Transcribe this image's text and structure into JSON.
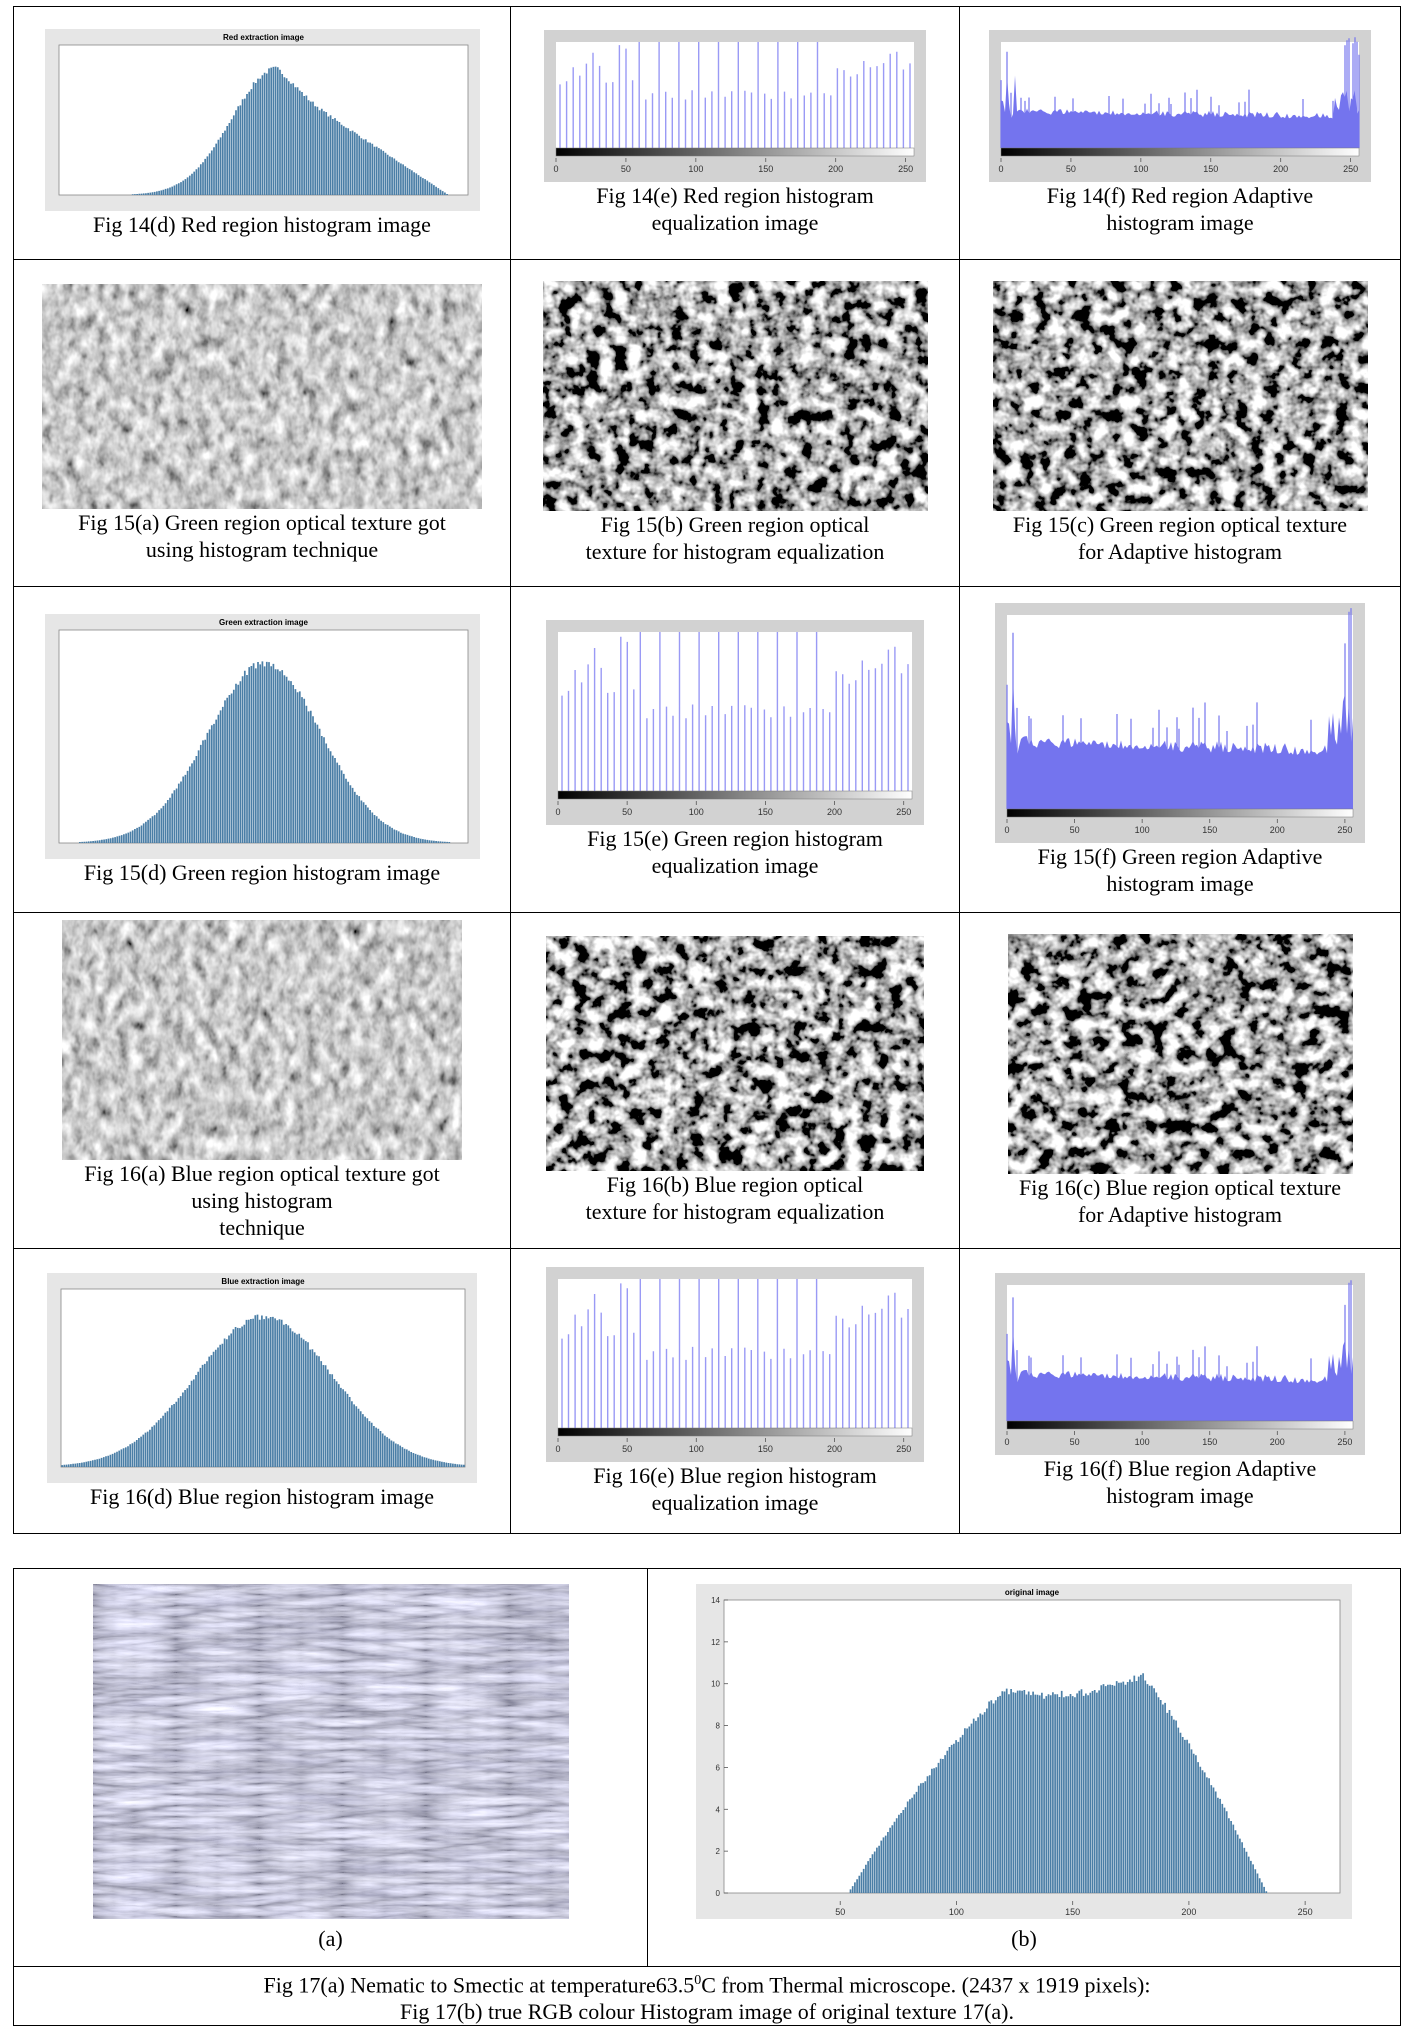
{
  "table": {
    "rows": [
      [
        {
          "figure": {
            "kind": "hist",
            "title": "Red extraction image"
          },
          "caption": [
            "Fig 14(d) Red region histogram image"
          ]
        },
        {
          "figure": {
            "kind": "eq",
            "xlim": [
              0,
              256
            ],
            "xticks": [
              0,
              50,
              100,
              150,
              200,
              250
            ]
          },
          "caption": [
            "Fig 14(e) Red region histogram",
            "equalization image"
          ]
        },
        {
          "figure": {
            "kind": "adapt",
            "xlim": [
              0,
              256
            ],
            "xticks": [
              0,
              50,
              100,
              150,
              200,
              250
            ]
          },
          "caption": [
            "Fig 14(f) Red region Adaptive",
            "histogram image"
          ]
        }
      ],
      [
        {
          "figure": {
            "kind": "texture"
          },
          "caption": [
            "Fig 15(a) Green region optical texture got",
            "using histogram technique"
          ]
        },
        {
          "figure": {
            "kind": "texture"
          },
          "caption": [
            "Fig 15(b) Green region optical",
            "texture for histogram equalization"
          ]
        },
        {
          "figure": {
            "kind": "texture"
          },
          "caption": [
            "Fig 15(c) Green region optical texture",
            "for Adaptive histogram"
          ]
        }
      ],
      [
        {
          "figure": {
            "kind": "hist",
            "title": "Green extraction image"
          },
          "caption": [
            "Fig 15(d) Green region histogram image"
          ]
        },
        {
          "figure": {
            "kind": "eq",
            "xlim": [
              0,
              256
            ],
            "xticks": [
              0,
              50,
              100,
              150,
              200,
              250
            ]
          },
          "caption": [
            "Fig 15(e) Green region histogram",
            "equalization image"
          ]
        },
        {
          "figure": {
            "kind": "adapt",
            "xlim": [
              0,
              256
            ],
            "xticks": [
              0,
              50,
              100,
              150,
              200,
              250
            ]
          },
          "caption": [
            "Fig 15(f) Green region Adaptive",
            "histogram image"
          ]
        }
      ],
      [
        {
          "figure": {
            "kind": "texture"
          },
          "caption": [
            "Fig 16(a) Blue region optical texture got",
            "using histogram",
            "technique"
          ]
        },
        {
          "figure": {
            "kind": "texture"
          },
          "caption": [
            "Fig 16(b) Blue region optical",
            "texture for histogram equalization"
          ]
        },
        {
          "figure": {
            "kind": "texture"
          },
          "caption": [
            "Fig 16(c) Blue region optical texture",
            "for Adaptive histogram"
          ]
        }
      ],
      [
        {
          "figure": {
            "kind": "hist",
            "title": "Blue extraction image"
          },
          "caption": [
            "Fig 16(d) Blue region histogram image"
          ]
        },
        {
          "figure": {
            "kind": "eq",
            "xlim": [
              0,
              256
            ],
            "xticks": [
              0,
              50,
              100,
              150,
              200,
              250
            ]
          },
          "caption": [
            "Fig 16(e) Blue region histogram",
            "equalization image"
          ]
        },
        {
          "figure": {
            "kind": "adapt",
            "xlim": [
              0,
              256
            ],
            "xticks": [
              0,
              50,
              100,
              150,
              200,
              250
            ]
          },
          "caption": [
            "Fig 16(f) Blue region Adaptive",
            "histogram image"
          ]
        }
      ]
    ]
  },
  "figure17": {
    "a": {
      "label": "(a)",
      "figure": {
        "kind": "crystal"
      }
    },
    "b": {
      "label": "(b)",
      "figure": {
        "kind": "hist",
        "title": "original image",
        "xlim": [
          0,
          265
        ],
        "xticks": [
          50,
          100,
          150,
          200,
          250
        ],
        "ylim": [
          0,
          14
        ],
        "yticks": [
          0,
          2,
          4,
          6,
          8,
          10,
          12,
          14
        ]
      }
    },
    "caption": [
      {
        "text": "Fig 17(a) Nematic to Smectic at temperature63.5",
        "sup": "0",
        "tail": "C from Thermal microscope. (2437 x 1919 pixels):"
      },
      {
        "text": "Fig 17(b) true RGB colour Histogram image of original texture 17(a)."
      }
    ]
  }
}
